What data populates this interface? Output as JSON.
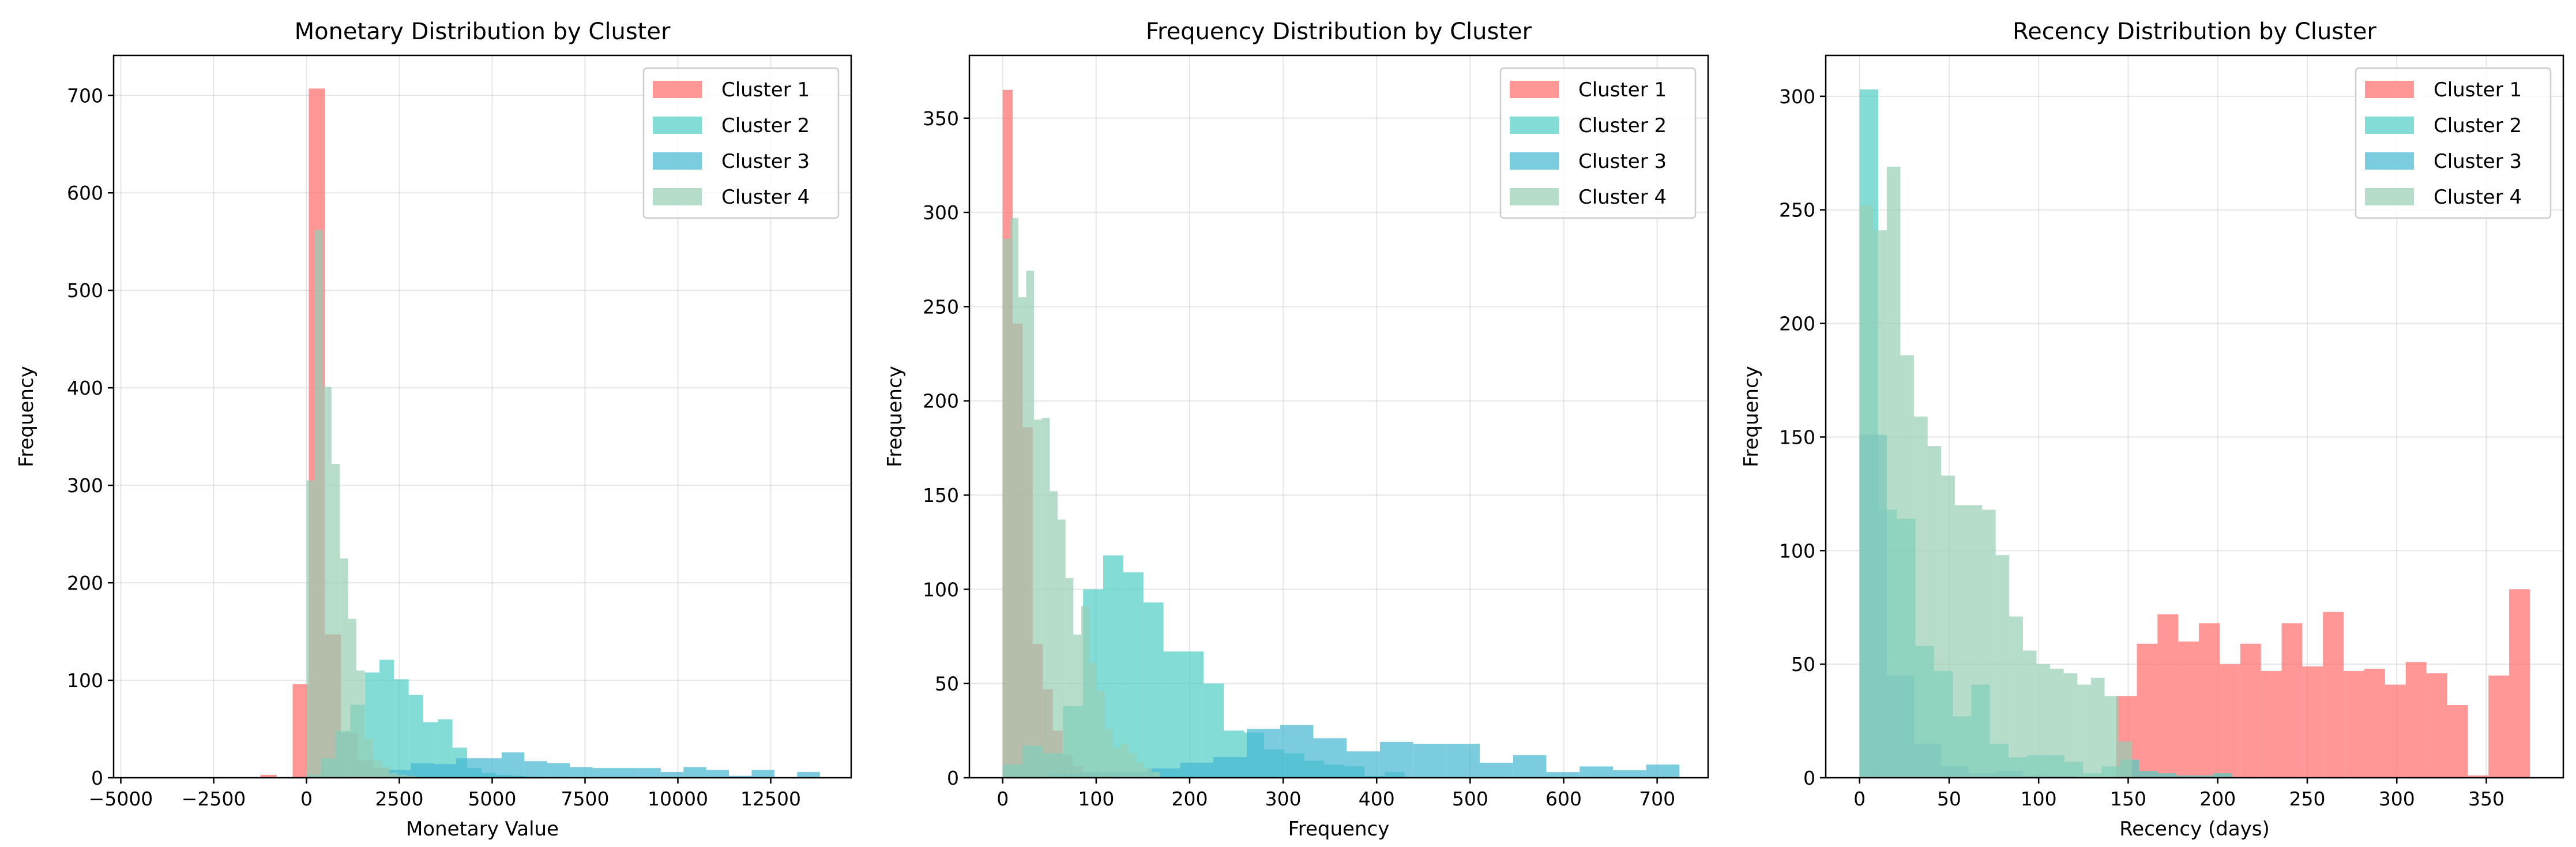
{
  "colors": {
    "Cluster 1": "#FF6B6B",
    "Cluster 2": "#4ECDC4",
    "Cluster 3": "#45B7D1",
    "Cluster 4": "#96CEB4"
  },
  "chart_data": [
    {
      "type": "bar",
      "subtype": "overlapping histogram",
      "title": "Monetary Distribution by Cluster",
      "xlabel": "Monetary Value",
      "ylabel": "Frequency",
      "xlim": [
        -5194,
        14666
      ],
      "ylim": [
        0,
        741
      ],
      "xticks": [
        -5000,
        -2500,
        0,
        2500,
        5000,
        7500,
        10000,
        12500
      ],
      "xtick_labels": [
        "−5000",
        "−2500",
        "0",
        "2500",
        "5000",
        "7500",
        "10000",
        "12500"
      ],
      "yticks": [
        0,
        100,
        200,
        300,
        400,
        500,
        600,
        700
      ],
      "ytick_labels": [
        "0",
        "100",
        "200",
        "300",
        "400",
        "500",
        "600",
        "700"
      ],
      "grid": true,
      "legend": {
        "placement": "top-right",
        "entries": [
          "Cluster 1",
          "Cluster 2",
          "Cluster 3",
          "Cluster 4"
        ]
      },
      "series": [
        {
          "name": "Cluster 1",
          "bin_start": -1239,
          "bin_width": 433,
          "counts": [
            3,
            0,
            96,
            707,
            147,
            46,
            18,
            10,
            3,
            1
          ]
        },
        {
          "name": "Cluster 2",
          "bin_start": 0,
          "bin_width": 393,
          "counts": [
            3,
            20,
            48,
            75,
            108,
            121,
            101,
            85,
            57,
            60,
            31,
            10,
            5,
            3,
            2,
            1
          ]
        },
        {
          "name": "Cluster 3",
          "bin_start": 2195,
          "bin_width": 612,
          "counts": [
            8,
            15,
            14,
            20,
            20,
            26,
            17,
            15,
            11,
            10,
            10,
            10,
            6,
            11,
            8,
            2,
            8,
            0,
            6
          ]
        },
        {
          "name": "Cluster 4",
          "bin_start": 0,
          "bin_width": 224,
          "counts": [
            305,
            562,
            401,
            322,
            225,
            163,
            110,
            40,
            18,
            11,
            5,
            3,
            2,
            1
          ]
        }
      ]
    },
    {
      "type": "bar",
      "subtype": "overlapping histogram",
      "title": "Frequency Distribution by Cluster",
      "xlabel": "Frequency",
      "ylabel": "Frequency",
      "xlim": [
        -35.6,
        754.5
      ],
      "ylim": [
        0,
        383.3
      ],
      "xticks": [
        0,
        100,
        200,
        300,
        400,
        500,
        600,
        700
      ],
      "xtick_labels": [
        "0",
        "100",
        "200",
        "300",
        "400",
        "500",
        "600",
        "700"
      ],
      "yticks": [
        0,
        50,
        100,
        150,
        200,
        250,
        300,
        350
      ],
      "ytick_labels": [
        "0",
        "50",
        "100",
        "150",
        "200",
        "250",
        "300",
        "350"
      ],
      "grid": true,
      "legend": {
        "placement": "top-right",
        "entries": [
          "Cluster 1",
          "Cluster 2",
          "Cluster 3",
          "Cluster 4"
        ]
      },
      "series": [
        {
          "name": "Cluster 1",
          "bin_start": 0,
          "bin_width": 10.7,
          "counts": [
            365,
            241,
            186,
            71,
            47,
            25,
            12,
            6,
            3,
            2,
            1
          ]
        },
        {
          "name": "Cluster 2",
          "bin_start": 0,
          "bin_width": 21.5,
          "counts": [
            7,
            17,
            13,
            38,
            100,
            118,
            109,
            93,
            67,
            67,
            50,
            25,
            24,
            15,
            13,
            9,
            7,
            6,
            1,
            3
          ]
        },
        {
          "name": "Cluster 3",
          "bin_start": 11.9,
          "bin_width": 35.6,
          "counts": [
            1,
            2,
            3,
            3,
            5,
            8,
            11,
            26,
            28,
            21,
            14,
            19,
            18,
            18,
            8,
            12,
            3,
            6,
            4,
            7
          ]
        },
        {
          "name": "Cluster 4",
          "bin_start": 0,
          "bin_width": 8.4,
          "counts": [
            286,
            297,
            255,
            269,
            190,
            191,
            152,
            137,
            106,
            76,
            91,
            61,
            46,
            26,
            16,
            18,
            13,
            8,
            5,
            3
          ]
        }
      ]
    },
    {
      "type": "bar",
      "subtype": "overlapping histogram",
      "title": "Recency Distribution by Cluster",
      "xlabel": "Recency (days)",
      "ylabel": "Frequency",
      "xlim": [
        -18.9,
        393
      ],
      "ylim": [
        0,
        318
      ],
      "xticks": [
        0,
        50,
        100,
        150,
        200,
        250,
        300,
        350
      ],
      "xtick_labels": [
        "0",
        "50",
        "100",
        "150",
        "200",
        "250",
        "300",
        "350"
      ],
      "yticks": [
        0,
        50,
        100,
        150,
        200,
        250,
        300
      ],
      "ytick_labels": [
        "0",
        "50",
        "100",
        "150",
        "200",
        "250",
        "300"
      ],
      "grid": true,
      "legend": {
        "placement": "top-right",
        "entries": [
          "Cluster 1",
          "Cluster 2",
          "Cluster 3",
          "Cluster 4"
        ]
      },
      "series": [
        {
          "name": "Cluster 1",
          "bin_start": 143.3,
          "bin_width": 11.55,
          "counts": [
            36,
            59,
            72,
            60,
            68,
            50,
            59,
            47,
            68,
            49,
            73,
            47,
            48,
            41,
            51,
            46,
            32,
            1,
            45,
            83
          ]
        },
        {
          "name": "Cluster 2",
          "bin_start": 0,
          "bin_width": 10.4,
          "counts": [
            303,
            118,
            114,
            58,
            47,
            27,
            41,
            15,
            9,
            10,
            10,
            7,
            2,
            5,
            8,
            3,
            2,
            1,
            1,
            2
          ]
        },
        {
          "name": "Cluster 3",
          "bin_start": 0,
          "bin_width": 15.2,
          "counts": [
            151,
            45,
            15,
            5,
            2,
            3,
            1,
            1
          ]
        },
        {
          "name": "Cluster 4",
          "bin_start": 0,
          "bin_width": 7.6,
          "counts": [
            252,
            241,
            269,
            186,
            159,
            146,
            133,
            120,
            120,
            118,
            98,
            71,
            56,
            50,
            48,
            46,
            41,
            44,
            36,
            16
          ]
        }
      ]
    }
  ]
}
